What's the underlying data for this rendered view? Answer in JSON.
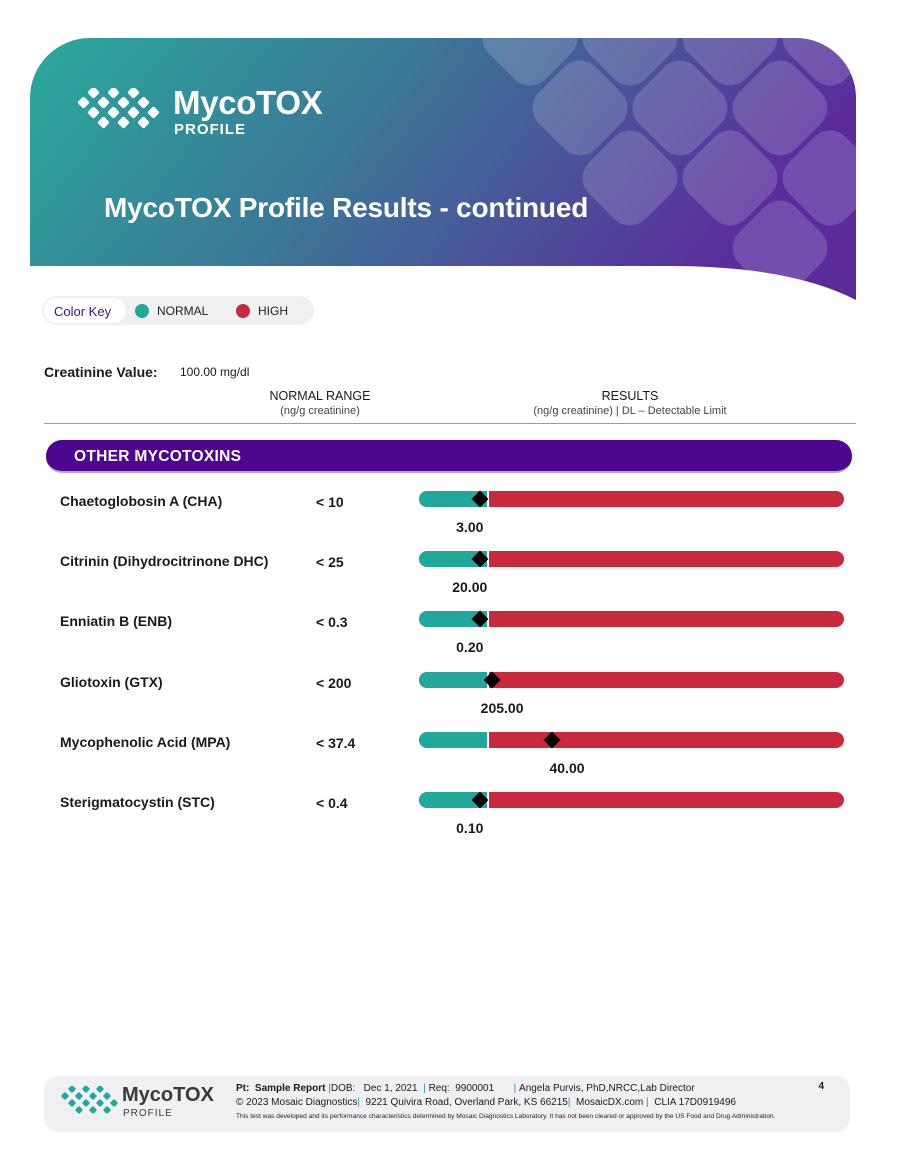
{
  "header": {
    "brand_name": "MycoTOX",
    "brand_sub": "PROFILE",
    "title": "MycoTOX Profile Results - continued",
    "gradient_start": "#2aa99b",
    "gradient_end": "#5b2b9c"
  },
  "color_key": {
    "label": "Color Key",
    "normal_label": "NORMAL",
    "high_label": "HIGH",
    "normal_color": "#22a89b",
    "high_color": "#c8293f"
  },
  "creatinine": {
    "label": "Creatinine Value:",
    "value": "100.00",
    "unit": "mg/dl"
  },
  "columns": {
    "normal_range": "NORMAL RANGE",
    "normal_range_unit": "(ng/g creatinine)",
    "results": "RESULTS",
    "results_unit": "(ng/g creatinine) | DL – Detectable Limit"
  },
  "section": {
    "title": "OTHER MYCOTOXINS",
    "color": "#4e0791"
  },
  "rows": [
    {
      "name": "Chaetoglobosin A (CHA)",
      "range": "< 10",
      "result": "3.00",
      "marker_fraction": 0.143,
      "normal_fraction": 0.16
    },
    {
      "name": "Citrinin (Dihydrocitrinone DHC)",
      "range": "< 25",
      "result": "20.00",
      "marker_fraction": 0.143,
      "normal_fraction": 0.16
    },
    {
      "name": "Enniatin B (ENB)",
      "range": "< 0.3",
      "result": "0.20",
      "marker_fraction": 0.143,
      "normal_fraction": 0.16
    },
    {
      "name": "Gliotoxin (GTX)",
      "range": "< 200",
      "result": "205.00",
      "marker_fraction": 0.172,
      "normal_fraction": 0.16
    },
    {
      "name": "Mycophenolic Acid (MPA)",
      "range": "< 37.4",
      "result": "40.00",
      "marker_fraction": 0.313,
      "normal_fraction": 0.16
    },
    {
      "name": "Sterigmatocystin (STC)",
      "range": "< 0.4",
      "result": "0.10",
      "marker_fraction": 0.143,
      "normal_fraction": 0.16
    }
  ],
  "footer": {
    "brand_name": "MycoTOX",
    "brand_sub": "PROFILE",
    "pt_label": "Pt:",
    "pt_value": "Sample Report",
    "dob_label": "DOB:",
    "dob_value": "Dec 1, 2021",
    "req_label": "Req:",
    "req_value": "9900001",
    "director": "Angela Purvis, PhD,NRCC,Lab Director",
    "copyright": "© 2023 Mosaic Diagnostics",
    "address": "9221 Quivira Road, Overland Park, KS 66215",
    "website": "MosaicDX.com",
    "clia": "CLIA 17D0919496",
    "disclaimer": "This test was developed and its performance characteristics determined by Mosaic Diagnostics Laboratory. It has not been cleared or approved by the US Food and Drug Administration.",
    "page_number": "4"
  }
}
